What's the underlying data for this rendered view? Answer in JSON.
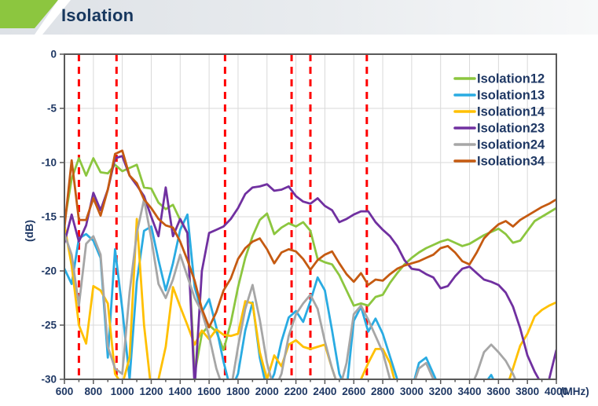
{
  "header": {
    "title": "Isolation",
    "accent_color": "#8cc63f",
    "title_color": "#17375e"
  },
  "chart_data": {
    "type": "line",
    "title": "Isolation",
    "xlabel": "(MHz)",
    "ylabel": "(dB)",
    "xlim": [
      600,
      4000
    ],
    "ylim": [
      -30,
      0
    ],
    "xticks": [
      600,
      800,
      1000,
      1200,
      1400,
      1600,
      1800,
      2000,
      2200,
      2400,
      2600,
      2800,
      3000,
      3200,
      3400,
      3600,
      3800,
      4000
    ],
    "yticks": [
      0,
      -5,
      -10,
      -15,
      -20,
      -25,
      -30
    ],
    "grid": true,
    "legend_position": "top-right",
    "colors": {
      "grid": "#d9d9d9",
      "border": "#595959",
      "tick_text": "#1f3864",
      "marker": "#ff0000"
    },
    "marker_lines": {
      "style": "dashed",
      "color": "#ff0000",
      "x_values": [
        700,
        960,
        1710,
        2170,
        2300,
        2690
      ]
    },
    "x_start": 600,
    "x_step": 50,
    "series": [
      {
        "name": "Isolation12",
        "color": "#8cc63f",
        "values": [
          -15.5,
          -11.5,
          -9.6,
          -11.2,
          -9.6,
          -10.9,
          -11.0,
          -10.2,
          -10.8,
          -10.5,
          -10.2,
          -12.3,
          -12.4,
          -13.7,
          -14.3,
          -13.9,
          -15.3,
          -16.5,
          -29.5,
          -25.8,
          -25.0,
          -25.6,
          -27.3,
          -24.8,
          -21.5,
          -18.8,
          -16.8,
          -15.3,
          -14.7,
          -16.6,
          -16.0,
          -15.6,
          -15.9,
          -15.5,
          -16.3,
          -18.9,
          -19.2,
          -19.4,
          -20.4,
          -21.8,
          -23.2,
          -23.0,
          -23.2,
          -22.4,
          -22.2,
          -21.1,
          -20.2,
          -19.4,
          -18.8,
          -18.3,
          -17.9,
          -17.6,
          -17.3,
          -17.1,
          -17.4,
          -17.7,
          -17.5,
          -17.1,
          -16.7,
          -16.4,
          -16.1,
          -16.6,
          -17.4,
          -17.2,
          -16.3,
          -15.4,
          -15.0,
          -14.6,
          -14.2
        ]
      },
      {
        "name": "Isolation13",
        "color": "#29abe2",
        "values": [
          -19.8,
          -21.2,
          -17.0,
          -16.6,
          -17.2,
          -18.8,
          -28.0,
          -18.0,
          -23.5,
          -30.0,
          -21.0,
          -16.3,
          -15.9,
          -19.0,
          -21.8,
          -19.3,
          -16.2,
          -14.8,
          -21.5,
          -23.8,
          -22.6,
          -25.2,
          -28.4,
          -31.0,
          -29.5,
          -25.5,
          -22.9,
          -28.0,
          -31.0,
          -29.5,
          -26.5,
          -24.3,
          -23.7,
          -24.7,
          -22.8,
          -20.6,
          -21.8,
          -25.5,
          -29.5,
          -31.0,
          -24.6,
          -23.3,
          -25.6,
          -24.4,
          -25.8,
          -27.9,
          -30.0,
          -31.0,
          -31.0,
          -28.5,
          -28.0,
          -29.5,
          -31.0,
          -31.0,
          -31.0,
          -31.0,
          -31.0,
          -31.0,
          -30.5,
          -29.6,
          -31.0,
          -31.0,
          -31.0,
          -31.0,
          -31.0,
          -31.0,
          -31.0,
          -31.0,
          -31.0
        ]
      },
      {
        "name": "Isolation14",
        "color": "#ffc000",
        "values": [
          -15.8,
          -19.5,
          -25.0,
          -26.7,
          -21.4,
          -21.8,
          -23.0,
          -29.5,
          -30.5,
          -28.0,
          -15.2,
          -25.0,
          -31.0,
          -30.0,
          -27.0,
          -21.5,
          -23.3,
          -25.0,
          -26.8,
          -25.5,
          -26.3,
          -25.4,
          -25.9,
          -26.0,
          -25.8,
          -22.8,
          -23.0,
          -27.5,
          -30.0,
          -27.8,
          -28.8,
          -26.8,
          -26.4,
          -27.0,
          -27.2,
          -27.0,
          -26.8,
          -29.0,
          -31.0,
          -31.0,
          -30.5,
          -30.0,
          -28.5,
          -27.2,
          -27.2,
          -28.5,
          -31.0,
          -31.0,
          -31.0,
          -31.0,
          -30.5,
          -30.8,
          -31.0,
          -31.0,
          -31.0,
          -31.0,
          -31.0,
          -31.0,
          -31.0,
          -31.0,
          -31.0,
          -31.0,
          -29.0,
          -26.9,
          -25.8,
          -24.2,
          -23.6,
          -23.2,
          -22.9
        ]
      },
      {
        "name": "Isolation23",
        "color": "#7030a0",
        "values": [
          -17.4,
          -14.8,
          -17.3,
          -15.8,
          -12.8,
          -14.4,
          -12.5,
          -9.6,
          -9.4,
          -11.2,
          -12.1,
          -13.1,
          -15.0,
          -16.8,
          -12.3,
          -16.8,
          -15.2,
          -16.5,
          -30.8,
          -20.0,
          -16.5,
          -16.2,
          -15.9,
          -15.2,
          -14.2,
          -12.9,
          -12.3,
          -12.2,
          -12.0,
          -12.6,
          -12.5,
          -12.2,
          -13.1,
          -13.6,
          -13.8,
          -13.3,
          -14.0,
          -14.4,
          -15.5,
          -15.2,
          -14.8,
          -14.5,
          -14.5,
          -15.5,
          -16.2,
          -16.8,
          -17.7,
          -19.0,
          -19.8,
          -19.9,
          -20.3,
          -20.6,
          -21.6,
          -21.4,
          -20.5,
          -19.8,
          -19.6,
          -20.2,
          -20.8,
          -21.0,
          -21.3,
          -22.0,
          -23.3,
          -25.3,
          -27.8,
          -29.3,
          -30.5,
          -30.0,
          -27.3
        ]
      },
      {
        "name": "Isolation24",
        "color": "#a6a6a6",
        "values": [
          -16.6,
          -18.5,
          -23.2,
          -17.5,
          -16.8,
          -18.5,
          -27.0,
          -29.0,
          -29.5,
          -22.0,
          -16.5,
          -13.4,
          -17.0,
          -21.2,
          -22.5,
          -20.8,
          -18.5,
          -20.5,
          -22.5,
          -23.8,
          -26.0,
          -29.0,
          -31.0,
          -31.0,
          -27.0,
          -23.5,
          -21.3,
          -24.5,
          -28.5,
          -31.0,
          -29.5,
          -26.0,
          -24.0,
          -23.0,
          -22.2,
          -23.5,
          -26.5,
          -29.0,
          -31.0,
          -28.5,
          -24.0,
          -23.2,
          -24.5,
          -26.0,
          -27.5,
          -30.0,
          -31.0,
          -31.0,
          -31.0,
          -29.0,
          -28.5,
          -30.0,
          -31.0,
          -31.0,
          -31.0,
          -31.0,
          -31.0,
          -29.5,
          -27.5,
          -26.8,
          -27.5,
          -28.3,
          -29.5,
          -31.0,
          -31.0,
          -31.0,
          -31.0,
          -31.0,
          -31.0
        ]
      },
      {
        "name": "Isolation34",
        "color": "#c55a11",
        "values": [
          -16.0,
          -9.8,
          -15.3,
          -15.3,
          -13.3,
          -14.9,
          -12.5,
          -9.2,
          -8.9,
          -11.2,
          -11.9,
          -13.4,
          -14.2,
          -15.2,
          -15.8,
          -16.0,
          -17.3,
          -19.0,
          -20.9,
          -23.5,
          -25.2,
          -23.8,
          -21.8,
          -20.7,
          -18.9,
          -17.9,
          -17.3,
          -17.0,
          -18.0,
          -19.3,
          -18.3,
          -18.0,
          -18.2,
          -18.9,
          -19.9,
          -19.0,
          -18.5,
          -18.2,
          -19.3,
          -20.3,
          -21.0,
          -20.2,
          -21.3,
          -20.8,
          -20.9,
          -20.3,
          -19.8,
          -19.5,
          -19.3,
          -19.1,
          -18.8,
          -18.5,
          -17.9,
          -17.7,
          -18.3,
          -19.1,
          -19.4,
          -18.3,
          -17.0,
          -16.3,
          -15.7,
          -15.4,
          -15.9,
          -15.3,
          -14.9,
          -14.5,
          -14.1,
          -13.8,
          -13.4
        ]
      }
    ]
  }
}
